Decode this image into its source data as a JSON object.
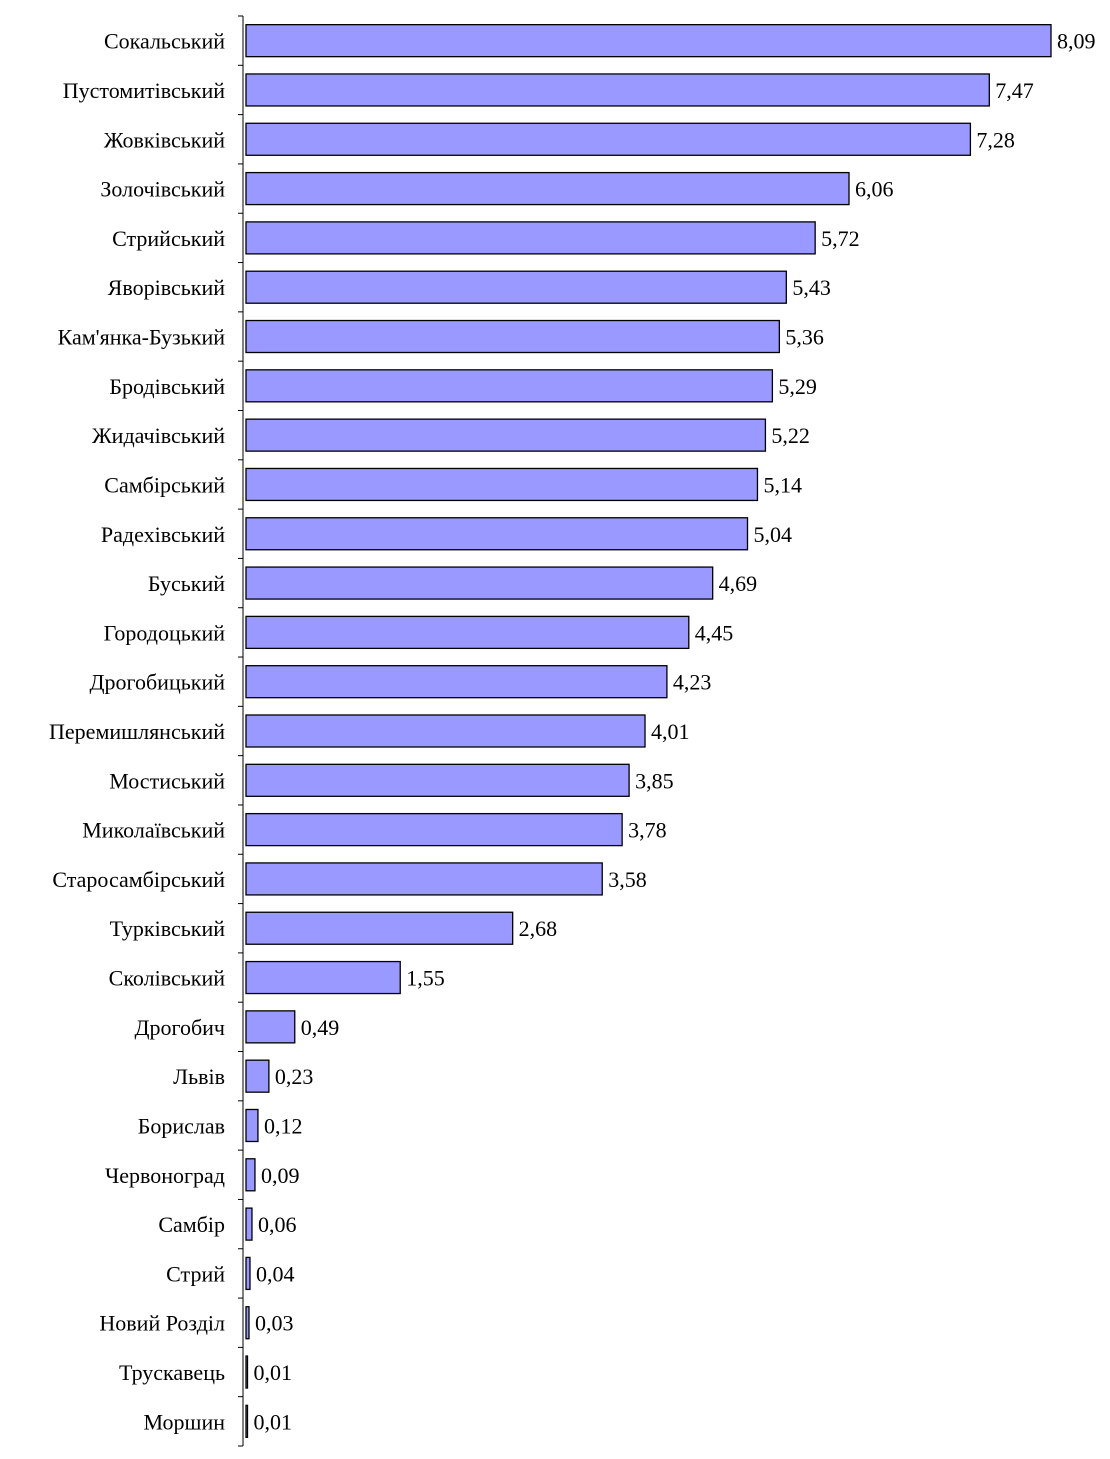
{
  "chart_data": {
    "type": "bar",
    "orientation": "horizontal",
    "categories": [
      "Сокальський",
      "Пустомитівський",
      "Жовківський",
      "Золочівський",
      "Стрийський",
      "Яворівський",
      "Кам'янка-Бузький",
      "Бродівський",
      "Жидачівський",
      "Самбірський",
      "Радехівський",
      "Буський",
      "Городоцький",
      "Дрогобицький",
      "Перемишлянський",
      "Мостиський",
      "Миколаївський",
      "Старосамбірський",
      "Турківський",
      "Сколівський",
      "Дрогобич",
      "Львів",
      "Борислав",
      "Червоноград",
      "Самбір",
      "Стрий",
      "Новий Розділ",
      "Трускавець",
      "Моршин"
    ],
    "values": [
      8.09,
      7.47,
      7.28,
      6.06,
      5.72,
      5.43,
      5.36,
      5.29,
      5.22,
      5.14,
      5.04,
      4.69,
      4.45,
      4.23,
      4.01,
      3.85,
      3.78,
      3.58,
      2.68,
      1.55,
      0.49,
      0.23,
      0.12,
      0.09,
      0.06,
      0.04,
      0.03,
      0.01,
      0.01
    ],
    "value_labels": [
      "8,09",
      "7,47",
      "7,28",
      "6,06",
      "5,72",
      "5,43",
      "5,36",
      "5,29",
      "5,22",
      "5,14",
      "5,04",
      "4,69",
      "4,45",
      "4,23",
      "4,01",
      "3,85",
      "3,78",
      "3,58",
      "2,68",
      "1,55",
      "0,49",
      "0,23",
      "0,12",
      "0,09",
      "0,06",
      "0,04",
      "0,03",
      "0,01",
      "0,01"
    ],
    "title": "",
    "xlabel": "",
    "ylabel": "",
    "xlim": [
      0,
      8.09
    ],
    "grid": false,
    "legend": "none",
    "bar_color": "#9999ff",
    "bar_edge_color": "#000000"
  }
}
